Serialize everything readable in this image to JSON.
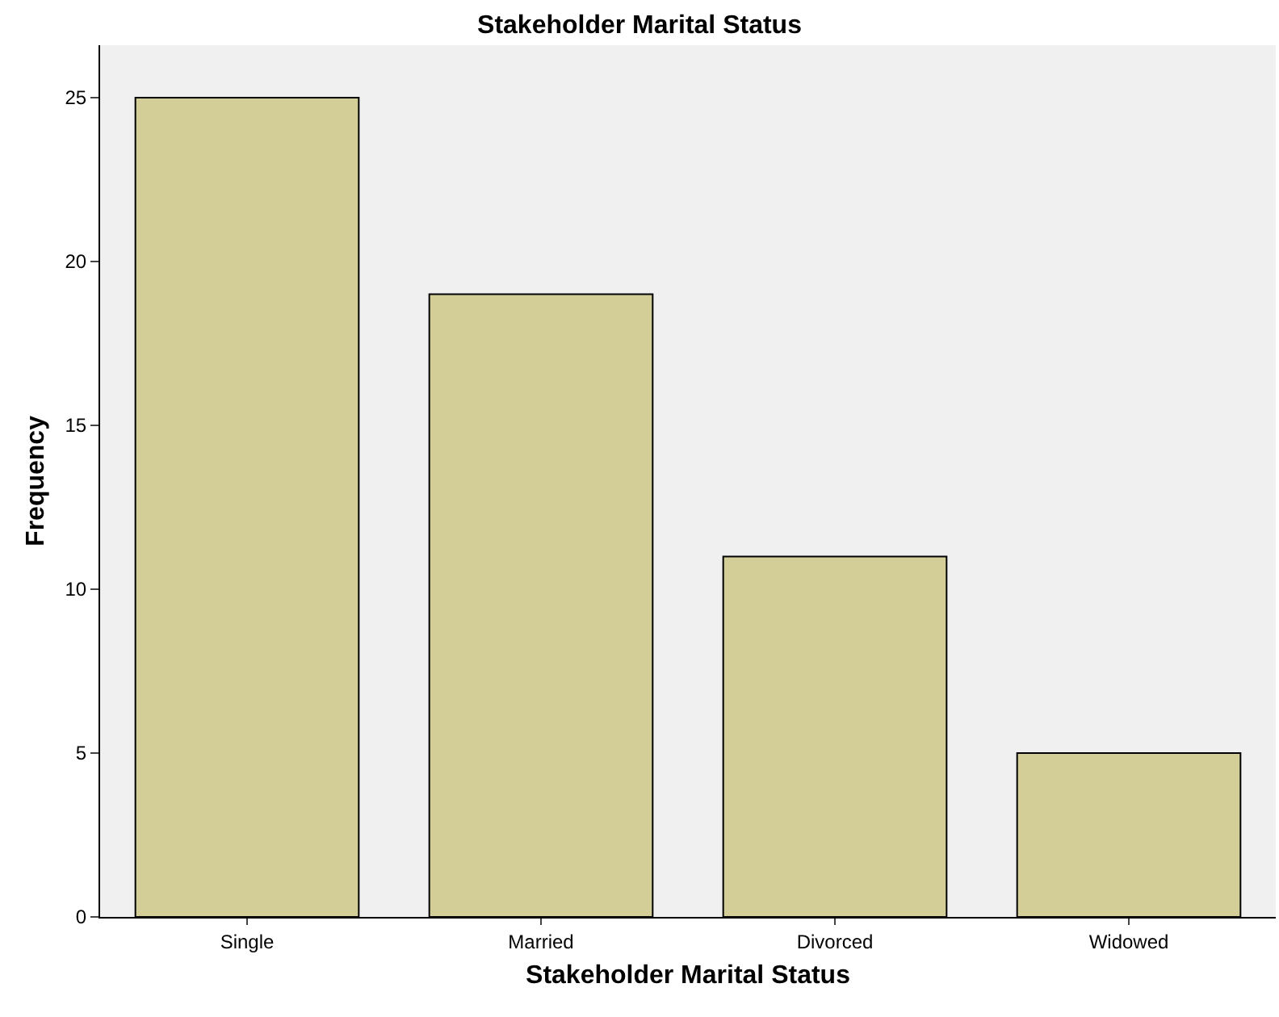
{
  "chart_data": {
    "type": "bar",
    "title": "Stakeholder Marital Status",
    "xlabel": "Stakeholder Marital Status",
    "ylabel": "Frequency",
    "categories": [
      "Single",
      "Married",
      "Divorced",
      "Widowed"
    ],
    "values": [
      25,
      19,
      11,
      5
    ],
    "color": "#d3ce97",
    "ylim": [
      0,
      26.6
    ],
    "yticks": [
      0,
      5,
      10,
      15,
      20,
      25
    ],
    "grid": false
  }
}
